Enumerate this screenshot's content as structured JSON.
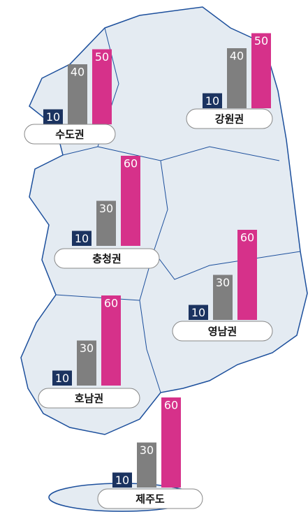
{
  "regions": [
    {
      "name": "수도권",
      "values": [
        10,
        40,
        50
      ]
    },
    {
      "name": "강원권",
      "values": [
        10,
        40,
        50
      ]
    },
    {
      "name": "충청권",
      "values": [
        10,
        30,
        60
      ]
    },
    {
      "name": "영남권",
      "values": [
        10,
        30,
        60
      ]
    },
    {
      "name": "호남권",
      "values": [
        10,
        30,
        60
      ]
    },
    {
      "name": "제주도",
      "values": [
        10,
        30,
        60
      ]
    }
  ],
  "colors": [
    "#1b3360",
    "#7f7f7f",
    "#d6318a"
  ]
}
